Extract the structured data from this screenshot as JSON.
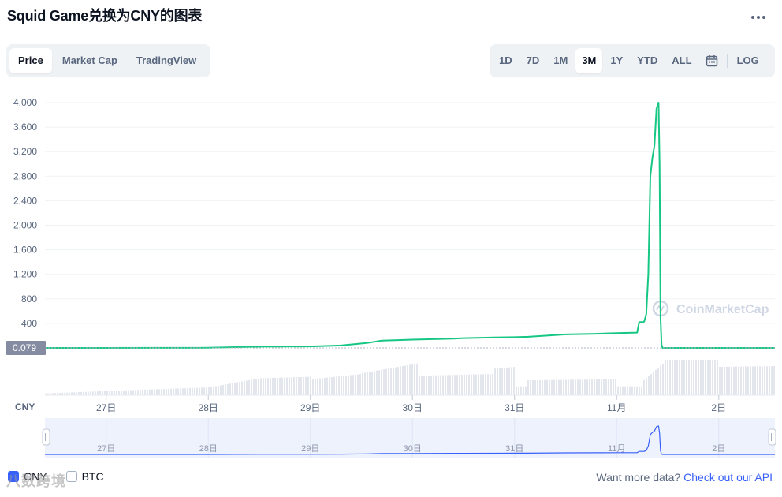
{
  "title": "Squid Game兑换为CNY的图表",
  "view_tabs": [
    {
      "label": "Price",
      "active": true
    },
    {
      "label": "Market Cap",
      "active": false
    },
    {
      "label": "TradingView",
      "active": false
    }
  ],
  "ranges": [
    {
      "label": "1D",
      "active": false
    },
    {
      "label": "7D",
      "active": false
    },
    {
      "label": "1M",
      "active": false
    },
    {
      "label": "3M",
      "active": true
    },
    {
      "label": "1Y",
      "active": false
    },
    {
      "label": "YTD",
      "active": false
    },
    {
      "label": "ALL",
      "active": false
    }
  ],
  "scale_toggle": "LOG",
  "currency_label": "CNY",
  "watermark": "CoinMarketCap",
  "footer": {
    "checkbox_cny": "CNY",
    "checkbox_btc": "BTC",
    "more_data": "Want more data?",
    "api_link": "Check out our API",
    "overlay_text": "八数跨境"
  },
  "colors": {
    "line": "#16c784",
    "navigator_line": "#3861fb",
    "volume": "#e3e6ec",
    "price_badge": "#858ca2"
  },
  "chart_data": {
    "type": "line",
    "ylabel": "CNY",
    "ylim": [
      0,
      4000
    ],
    "y_ticks": [
      "4,000",
      "3,600",
      "3,200",
      "2,800",
      "2,400",
      "2,000",
      "1,600",
      "1,200",
      "800",
      "400"
    ],
    "x_ticks": [
      "27日",
      "28日",
      "29日",
      "30日",
      "31日",
      "11月",
      "2日"
    ],
    "current_price_label": "0.079",
    "current_price": 0.079,
    "x_domain_days": [
      26.4,
      33.55
    ],
    "series": [
      {
        "x": [
          26.4,
          27.5,
          28.0,
          28.5,
          29.0,
          29.3,
          29.55,
          29.7,
          30.0,
          30.4,
          30.5,
          30.8,
          31.0,
          31.1,
          31.12,
          31.5,
          31.8,
          32.0,
          32.2,
          32.22,
          32.26,
          32.27,
          32.29,
          32.31,
          32.33,
          32.35,
          32.37,
          32.39,
          32.41,
          32.42,
          32.43,
          32.44,
          32.45,
          33.0,
          33.55
        ],
        "y": [
          0.5,
          1,
          2,
          20,
          25,
          40,
          80,
          120,
          135,
          150,
          160,
          170,
          175,
          180,
          180,
          220,
          230,
          240,
          250,
          420,
          420,
          430,
          550,
          1200,
          2800,
          3100,
          3300,
          3900,
          4000,
          3000,
          500,
          50,
          0.079,
          0.079,
          0.079
        ]
      }
    ],
    "volume": [
      {
        "from": 26.4,
        "to": 27.0,
        "v_start": 0.05,
        "v_end": 0.12
      },
      {
        "from": 27.0,
        "to": 28.0,
        "v_start": 0.12,
        "v_end": 0.22
      },
      {
        "from": 28.0,
        "to": 28.5,
        "v_start": 0.22,
        "v_end": 0.48
      },
      {
        "from": 28.5,
        "to": 29.0,
        "v_start": 0.48,
        "v_end": 0.52
      },
      {
        "from": 29.0,
        "to": 29.5,
        "v_start": 0.45,
        "v_end": 0.6
      },
      {
        "from": 29.5,
        "to": 30.05,
        "v_start": 0.62,
        "v_end": 0.9
      },
      {
        "from": 30.05,
        "to": 30.8,
        "v_start": 0.55,
        "v_end": 0.6
      },
      {
        "from": 30.8,
        "to": 31.0,
        "v_start": 0.75,
        "v_end": 0.8
      },
      {
        "from": 31.0,
        "to": 31.12,
        "v_start": 0.25,
        "v_end": 0.25
      },
      {
        "from": 31.12,
        "to": 32.0,
        "v_start": 0.42,
        "v_end": 0.45
      },
      {
        "from": 32.0,
        "to": 32.25,
        "v_start": 0.25,
        "v_end": 0.25
      },
      {
        "from": 32.25,
        "to": 32.45,
        "v_start": 0.4,
        "v_end": 0.9
      },
      {
        "from": 32.45,
        "to": 33.0,
        "v_start": 1.0,
        "v_end": 1.0
      },
      {
        "from": 33.0,
        "to": 33.55,
        "v_start": 0.8,
        "v_end": 0.82
      }
    ]
  }
}
